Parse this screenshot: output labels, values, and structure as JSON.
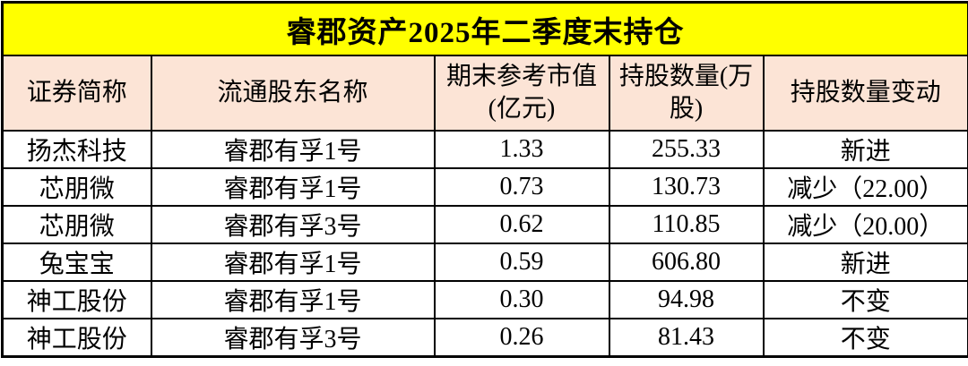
{
  "title": "睿郡资产2025年二季度末持仓",
  "colors": {
    "title_bg": "#ffff00",
    "header_bg": "#fce4d6",
    "row_bg": "#ffffff",
    "border": "#000000",
    "text": "#000000"
  },
  "table": {
    "columns": [
      "证券简称",
      "流通股东名称",
      "期末参考市值(亿元)",
      "持股数量(万股)",
      "持股数量变动"
    ],
    "rows": [
      [
        "扬杰科技",
        "睿郡有孚1号",
        "1.33",
        "255.33",
        "新进"
      ],
      [
        "芯朋微",
        "睿郡有孚1号",
        "0.73",
        "130.73",
        "减少（22.00）"
      ],
      [
        "芯朋微",
        "睿郡有孚3号",
        "0.62",
        "110.85",
        "减少（20.00）"
      ],
      [
        "兔宝宝",
        "睿郡有孚1号",
        "0.59",
        "606.80",
        "新进"
      ],
      [
        "神工股份",
        "睿郡有孚1号",
        "0.30",
        "94.98",
        "不变"
      ],
      [
        "神工股份",
        "睿郡有孚3号",
        "0.26",
        "81.43",
        "不变"
      ]
    ]
  }
}
